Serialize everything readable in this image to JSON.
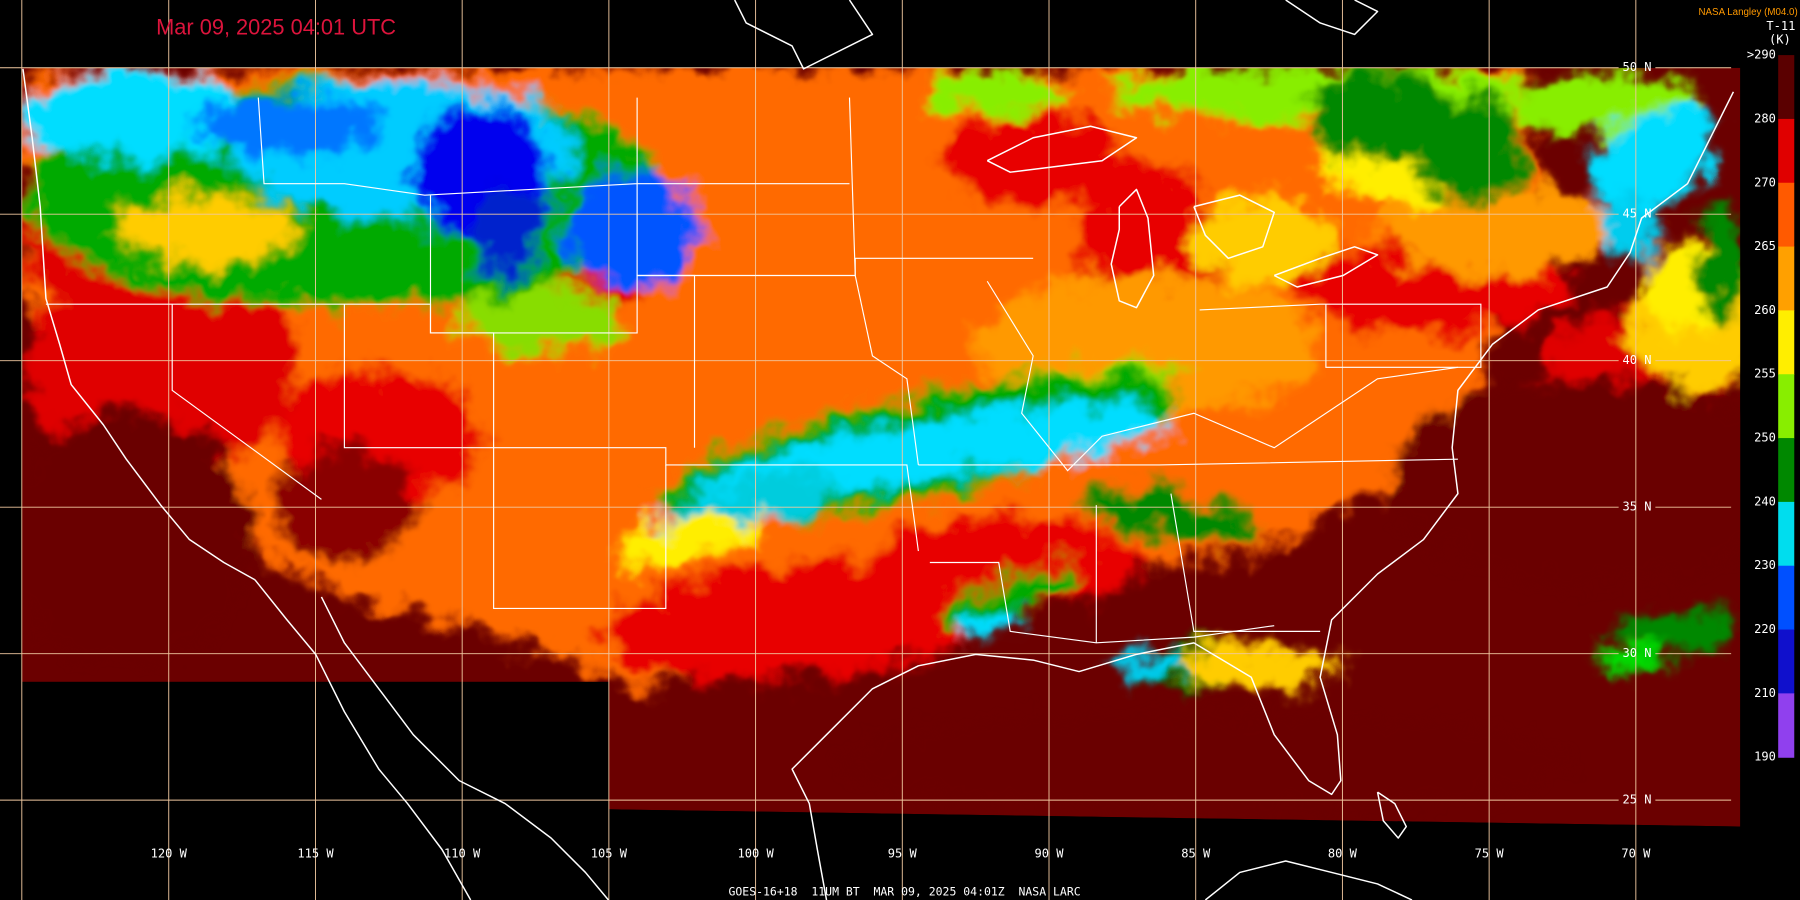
{
  "header": {
    "title": "Mar 09, 2025 04:01 UTC",
    "source": "NASA Langley (M04.0)"
  },
  "colorbar": {
    "channel": "T-11",
    "unit": "(K)",
    "labels": [
      ">290",
      "280",
      "270",
      "265",
      "260",
      "255",
      "250",
      "240",
      "230",
      "220",
      "210",
      "190"
    ]
  },
  "grid": {
    "longitude_labels": [
      "120 W",
      "115 W",
      "110 W",
      "105 W",
      "100 W",
      "95 W",
      "90 W",
      "85 W",
      "80 W",
      "75 W",
      "70 W"
    ],
    "latitude_labels": [
      "50 N",
      "45 N",
      "40 N",
      "35 N",
      "30 N",
      "25 N"
    ]
  },
  "footer": "GOES-16+18  11UM BT  MAR 09, 2025 04:01Z  NASA LARC"
}
